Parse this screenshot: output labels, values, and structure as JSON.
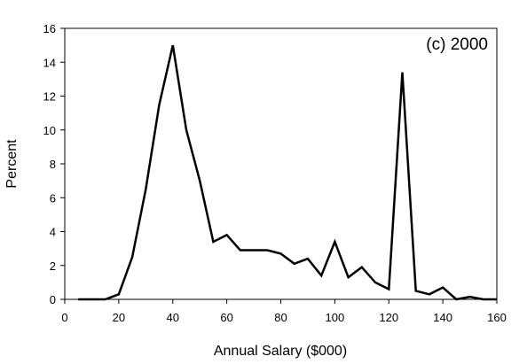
{
  "chart_data": {
    "type": "line",
    "title": "",
    "annotation": "(c) 2000",
    "xlabel": "Annual Salary ($000)",
    "ylabel": "Percent",
    "xlim": [
      0,
      160
    ],
    "ylim": [
      0,
      16
    ],
    "x_ticks": [
      0,
      20,
      40,
      60,
      80,
      100,
      120,
      140,
      160
    ],
    "y_ticks": [
      0,
      2,
      4,
      6,
      8,
      10,
      12,
      14,
      16
    ],
    "grid": false,
    "line_color": "#000000",
    "series": [
      {
        "x": [
          5,
          10,
          15,
          20,
          25,
          30,
          35,
          40,
          45,
          50,
          55,
          60,
          65,
          70,
          75,
          80,
          85,
          90,
          95,
          100,
          105,
          110,
          115,
          120,
          125,
          130,
          135,
          140,
          145,
          150,
          155,
          160
        ],
        "y": [
          0,
          0,
          0,
          0.3,
          2.5,
          6.5,
          11.5,
          15.0,
          10.0,
          7.0,
          3.4,
          3.8,
          2.9,
          2.9,
          2.9,
          2.7,
          2.1,
          2.4,
          1.4,
          3.4,
          1.3,
          1.9,
          1.0,
          0.6,
          13.4,
          0.5,
          0.3,
          0.7,
          0,
          0.15,
          0,
          0
        ]
      }
    ]
  }
}
